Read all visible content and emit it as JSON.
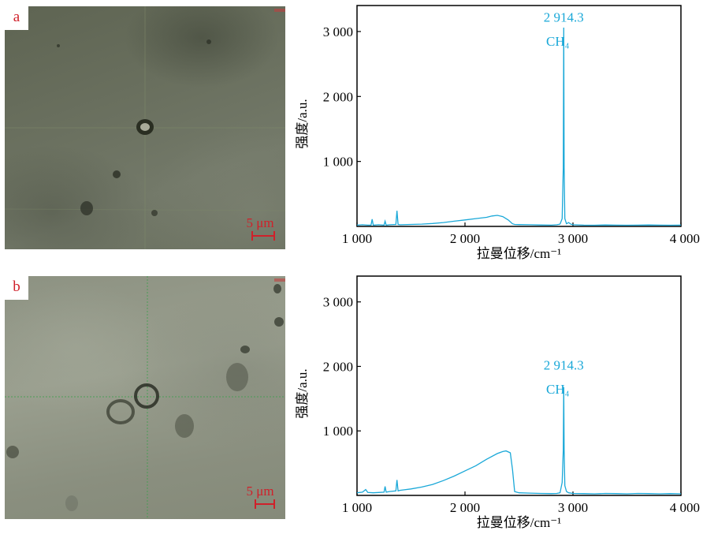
{
  "panels": [
    {
      "letter": "a",
      "scale_text": "5 μm"
    },
    {
      "letter": "b",
      "scale_text": "5 μm"
    }
  ],
  "colors": {
    "spectrum": "#1aa8d8",
    "label_red": "#d0202a",
    "axis": "#000000"
  },
  "chart_data": [
    {
      "type": "line",
      "xlabel": "拉曼位移/cm⁻¹",
      "ylabel": "强度/a.u.",
      "xlim": [
        1000,
        4000
      ],
      "ylim": [
        0,
        3400
      ],
      "xticks": [
        1000,
        2000,
        3000,
        4000
      ],
      "xtick_labels": [
        "1 000",
        "2 000",
        "3 000",
        "4 000"
      ],
      "yticks": [
        1000,
        2000,
        3000
      ],
      "ytick_labels": [
        "1 000",
        "2 000",
        "3 000"
      ],
      "annotations": [
        {
          "text": "2 914.3",
          "x": 2914.3,
          "y": 3150
        },
        {
          "text": "CH₄",
          "x": 2860,
          "y": 2780
        }
      ],
      "series": [
        {
          "x": [
            1000,
            1050,
            1100,
            1130,
            1140,
            1150,
            1200,
            1250,
            1260,
            1270,
            1300,
            1360,
            1370,
            1380,
            1400,
            1500,
            1600,
            1700,
            1800,
            1900,
            2000,
            2100,
            2200,
            2250,
            2300,
            2350,
            2400,
            2440,
            2460,
            2500,
            2600,
            2700,
            2800,
            2850,
            2880,
            2900,
            2910,
            2914.3,
            2918,
            2925,
            2940,
            2960,
            2980,
            3000,
            3100,
            3200,
            3300,
            3400,
            3500,
            3600,
            3700,
            3800,
            3900,
            4000
          ],
          "y": [
            20,
            25,
            20,
            20,
            110,
            20,
            25,
            20,
            80,
            20,
            25,
            30,
            240,
            30,
            25,
            30,
            35,
            45,
            60,
            80,
            100,
            120,
            140,
            160,
            170,
            150,
            100,
            40,
            30,
            28,
            25,
            22,
            20,
            25,
            35,
            120,
            900,
            3060,
            900,
            120,
            40,
            60,
            35,
            25,
            20,
            18,
            22,
            20,
            18,
            20,
            22,
            20,
            18,
            20
          ]
        }
      ]
    },
    {
      "type": "line",
      "xlabel": "拉曼位移/cm⁻¹",
      "ylabel": "强度/a.u.",
      "xlim": [
        1000,
        4000
      ],
      "ylim": [
        0,
        3400
      ],
      "xticks": [
        1000,
        2000,
        3000,
        4000
      ],
      "xtick_labels": [
        "1 000",
        "2 000",
        "3 000",
        "4 000"
      ],
      "yticks": [
        1000,
        2000,
        3000
      ],
      "ytick_labels": [
        "1 000",
        "2 000",
        "3 000"
      ],
      "annotations": [
        {
          "text": "2 914.3",
          "x": 2914.3,
          "y": 1950
        },
        {
          "text": "CH₄",
          "x": 2860,
          "y": 1580
        }
      ],
      "series": [
        {
          "x": [
            1000,
            1050,
            1080,
            1100,
            1150,
            1200,
            1250,
            1260,
            1270,
            1300,
            1360,
            1370,
            1380,
            1400,
            1500,
            1600,
            1700,
            1800,
            1900,
            2000,
            2100,
            2200,
            2300,
            2350,
            2380,
            2420,
            2440,
            2460,
            2500,
            2600,
            2700,
            2800,
            2850,
            2880,
            2900,
            2910,
            2914.3,
            2918,
            2925,
            2940,
            2960,
            3000,
            3100,
            3200,
            3300,
            3400,
            3500,
            3600,
            3700,
            3800,
            3900,
            4000
          ],
          "y": [
            40,
            50,
            90,
            45,
            40,
            45,
            50,
            140,
            50,
            60,
            70,
            240,
            70,
            80,
            100,
            130,
            170,
            230,
            300,
            380,
            460,
            560,
            650,
            680,
            690,
            660,
            400,
            60,
            40,
            35,
            30,
            28,
            30,
            40,
            200,
            700,
            1680,
            700,
            150,
            60,
            40,
            30,
            28,
            25,
            30,
            28,
            25,
            30,
            28,
            25,
            28,
            25
          ]
        }
      ]
    }
  ]
}
